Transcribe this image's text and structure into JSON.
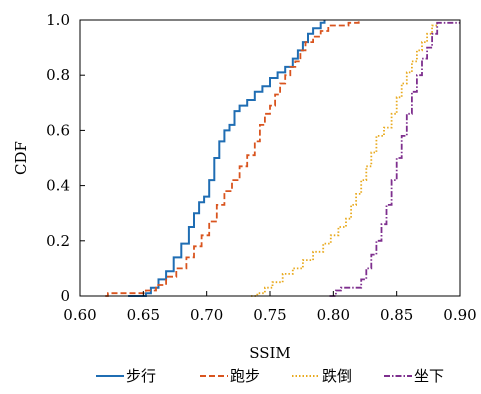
{
  "chart_data": {
    "type": "line",
    "title": "",
    "xlabel": "SSIM",
    "ylabel": "CDF",
    "xlim": [
      0.6,
      0.9
    ],
    "ylim": [
      0,
      1.0
    ],
    "x_ticks": [
      "0.60",
      "0.65",
      "0.70",
      "0.75",
      "0.80",
      "0.85",
      "0.90"
    ],
    "y_ticks": [
      "0",
      "0.2",
      "0.4",
      "0.6",
      "0.8",
      "1.0"
    ],
    "grid": false,
    "legend_position": "bottom",
    "series": [
      {
        "name": "步行",
        "color": "#1f6db3",
        "dash": "solid",
        "points": [
          [
            0.638,
            0.0
          ],
          [
            0.652,
            0.01
          ],
          [
            0.656,
            0.03
          ],
          [
            0.662,
            0.06
          ],
          [
            0.668,
            0.09
          ],
          [
            0.674,
            0.14
          ],
          [
            0.68,
            0.19
          ],
          [
            0.686,
            0.25
          ],
          [
            0.69,
            0.3
          ],
          [
            0.694,
            0.34
          ],
          [
            0.698,
            0.36
          ],
          [
            0.702,
            0.42
          ],
          [
            0.706,
            0.5
          ],
          [
            0.71,
            0.56
          ],
          [
            0.714,
            0.6
          ],
          [
            0.718,
            0.62
          ],
          [
            0.722,
            0.67
          ],
          [
            0.726,
            0.69
          ],
          [
            0.732,
            0.71
          ],
          [
            0.738,
            0.74
          ],
          [
            0.744,
            0.76
          ],
          [
            0.75,
            0.79
          ],
          [
            0.756,
            0.81
          ],
          [
            0.762,
            0.83
          ],
          [
            0.768,
            0.86
          ],
          [
            0.772,
            0.89
          ],
          [
            0.776,
            0.92
          ],
          [
            0.78,
            0.95
          ],
          [
            0.784,
            0.97
          ],
          [
            0.79,
            0.99
          ],
          [
            0.793,
            1.0
          ]
        ]
      },
      {
        "name": "跑步",
        "color": "#d9541e",
        "dash": "dashed",
        "points": [
          [
            0.62,
            0.0
          ],
          [
            0.622,
            0.01
          ],
          [
            0.645,
            0.01
          ],
          [
            0.652,
            0.02
          ],
          [
            0.66,
            0.04
          ],
          [
            0.668,
            0.07
          ],
          [
            0.676,
            0.1
          ],
          [
            0.684,
            0.14
          ],
          [
            0.69,
            0.18
          ],
          [
            0.696,
            0.22
          ],
          [
            0.702,
            0.27
          ],
          [
            0.708,
            0.33
          ],
          [
            0.714,
            0.38
          ],
          [
            0.72,
            0.42
          ],
          [
            0.726,
            0.47
          ],
          [
            0.732,
            0.51
          ],
          [
            0.738,
            0.56
          ],
          [
            0.742,
            0.62
          ],
          [
            0.746,
            0.66
          ],
          [
            0.75,
            0.69
          ],
          [
            0.754,
            0.73
          ],
          [
            0.758,
            0.77
          ],
          [
            0.762,
            0.8
          ],
          [
            0.766,
            0.83
          ],
          [
            0.77,
            0.85
          ],
          [
            0.774,
            0.89
          ],
          [
            0.778,
            0.92
          ],
          [
            0.784,
            0.94
          ],
          [
            0.79,
            0.96
          ],
          [
            0.796,
            0.98
          ],
          [
            0.812,
            0.99
          ],
          [
            0.82,
            1.0
          ]
        ]
      },
      {
        "name": "跌倒",
        "color": "#e8a91d",
        "dash": "dotted",
        "points": [
          [
            0.735,
            0.0
          ],
          [
            0.74,
            0.01
          ],
          [
            0.746,
            0.03
          ],
          [
            0.752,
            0.05
          ],
          [
            0.76,
            0.08
          ],
          [
            0.768,
            0.1
          ],
          [
            0.776,
            0.13
          ],
          [
            0.784,
            0.16
          ],
          [
            0.792,
            0.19
          ],
          [
            0.798,
            0.22
          ],
          [
            0.804,
            0.25
          ],
          [
            0.81,
            0.28
          ],
          [
            0.814,
            0.33
          ],
          [
            0.818,
            0.37
          ],
          [
            0.822,
            0.42
          ],
          [
            0.826,
            0.47
          ],
          [
            0.83,
            0.52
          ],
          [
            0.834,
            0.58
          ],
          [
            0.84,
            0.61
          ],
          [
            0.846,
            0.66
          ],
          [
            0.85,
            0.72
          ],
          [
            0.854,
            0.77
          ],
          [
            0.858,
            0.81
          ],
          [
            0.862,
            0.85
          ],
          [
            0.866,
            0.89
          ],
          [
            0.87,
            0.92
          ],
          [
            0.874,
            0.95
          ],
          [
            0.878,
            0.98
          ],
          [
            0.882,
            1.0
          ]
        ]
      },
      {
        "name": "坐下",
        "color": "#7e2f8e",
        "dash": "dashdot",
        "points": [
          [
            0.797,
            0.0
          ],
          [
            0.802,
            0.02
          ],
          [
            0.806,
            0.03
          ],
          [
            0.818,
            0.03
          ],
          [
            0.822,
            0.06
          ],
          [
            0.826,
            0.1
          ],
          [
            0.83,
            0.15
          ],
          [
            0.834,
            0.2
          ],
          [
            0.838,
            0.26
          ],
          [
            0.842,
            0.33
          ],
          [
            0.846,
            0.42
          ],
          [
            0.85,
            0.5
          ],
          [
            0.854,
            0.58
          ],
          [
            0.858,
            0.66
          ],
          [
            0.862,
            0.74
          ],
          [
            0.866,
            0.8
          ],
          [
            0.87,
            0.86
          ],
          [
            0.874,
            0.9
          ],
          [
            0.878,
            0.95
          ],
          [
            0.882,
            0.99
          ],
          [
            0.89,
            0.99
          ],
          [
            0.9,
            0.99
          ]
        ]
      }
    ]
  }
}
